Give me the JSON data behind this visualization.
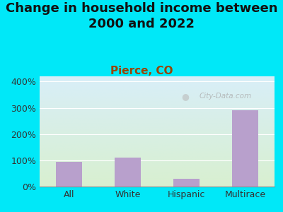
{
  "title": "Change in household income between\n2000 and 2022",
  "subtitle": "Pierce, CO",
  "categories": [
    "All",
    "White",
    "Hispanic",
    "Multirace"
  ],
  "values": [
    95,
    110,
    30,
    290
  ],
  "bar_color": "#b8a0cc",
  "title_fontsize": 13,
  "subtitle_fontsize": 11,
  "subtitle_color": "#994400",
  "background_color": "#00e8f8",
  "plot_bg_top": "#d8eef8",
  "plot_bg_bottom": "#d8f0d0",
  "yticks": [
    0,
    100,
    200,
    300,
    400
  ],
  "ylim": [
    0,
    420
  ],
  "watermark": "City-Data.com",
  "tick_fontsize": 9
}
